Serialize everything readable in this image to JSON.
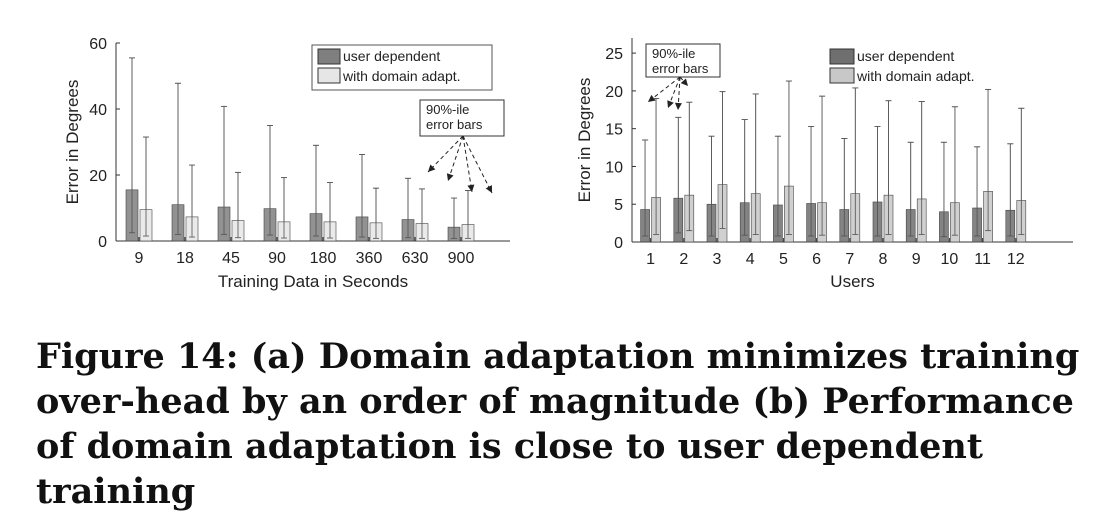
{
  "chart_data": [
    {
      "type": "bar",
      "xlabel": "Training Data in Seconds",
      "ylabel": "Error in Degrees",
      "ylim": [
        0,
        60
      ],
      "yticks": [
        0,
        20,
        40,
        60
      ],
      "categories": [
        "9",
        "18",
        "45",
        "90",
        "180",
        "360",
        "630",
        "900"
      ],
      "series": [
        {
          "name": "user dependent",
          "color": "#7f7f7f",
          "values": [
            15.5,
            11.0,
            10.3,
            9.8,
            8.3,
            7.3,
            6.5,
            4.2
          ],
          "err_low": [
            2.5,
            2.0,
            2.0,
            1.8,
            1.5,
            1.2,
            1.0,
            0.8
          ],
          "err_high": [
            55.5,
            47.8,
            40.8,
            35.0,
            29.0,
            26.2,
            19.0,
            13.0
          ]
        },
        {
          "name": "with domain adapt.",
          "color": "#e6e6e6",
          "values": [
            9.5,
            7.3,
            6.2,
            5.8,
            5.8,
            5.5,
            5.3,
            5.0
          ],
          "err_low": [
            1.5,
            1.2,
            1.0,
            0.9,
            0.9,
            0.8,
            0.8,
            0.8
          ],
          "err_high": [
            31.5,
            23.0,
            20.8,
            19.2,
            17.7,
            16.0,
            15.8,
            15.3
          ]
        }
      ],
      "legend_position": "top-right",
      "annotation": {
        "lines": [
          "90%-ile",
          "error bars"
        ]
      }
    },
    {
      "type": "bar",
      "xlabel": "Users",
      "ylabel": "Error in Degrees",
      "ylim": [
        0,
        27
      ],
      "yticks": [
        0,
        5,
        10,
        15,
        20,
        25
      ],
      "categories": [
        "1",
        "2",
        "3",
        "4",
        "5",
        "6",
        "7",
        "8",
        "9",
        "10",
        "11",
        "12"
      ],
      "series": [
        {
          "name": "user dependent",
          "color": "#6f6f6f",
          "values": [
            4.3,
            5.8,
            5.0,
            5.2,
            4.9,
            5.1,
            4.3,
            5.3,
            4.3,
            4.0,
            4.5,
            4.2
          ],
          "err_low": [
            0.8,
            1.2,
            0.8,
            0.9,
            0.8,
            0.8,
            0.8,
            0.8,
            0.8,
            0.7,
            0.8,
            0.8
          ],
          "err_high": [
            13.5,
            16.5,
            14.0,
            16.2,
            14.0,
            15.3,
            13.7,
            15.3,
            13.2,
            13.2,
            12.6,
            13.0
          ]
        },
        {
          "name": "with domain adapt.",
          "color": "#c8c8c8",
          "values": [
            5.9,
            6.2,
            7.6,
            6.4,
            7.4,
            5.2,
            6.4,
            6.2,
            5.7,
            5.2,
            6.7,
            5.5
          ],
          "err_low": [
            1.0,
            1.5,
            1.8,
            1.0,
            1.0,
            0.9,
            1.0,
            1.0,
            1.0,
            0.9,
            1.5,
            1.0
          ],
          "err_high": [
            19.0,
            18.5,
            19.9,
            19.6,
            21.3,
            19.3,
            20.4,
            18.7,
            18.6,
            17.9,
            20.2,
            17.7
          ]
        }
      ],
      "legend_position": "top-right",
      "annotation": {
        "lines": [
          "90%-ile",
          "error bars"
        ]
      }
    }
  ],
  "caption": "Figure 14: (a) Domain adaptation minimizes training over-head by an order of magnitude (b) Performance of domain adaptation is close to user dependent training"
}
